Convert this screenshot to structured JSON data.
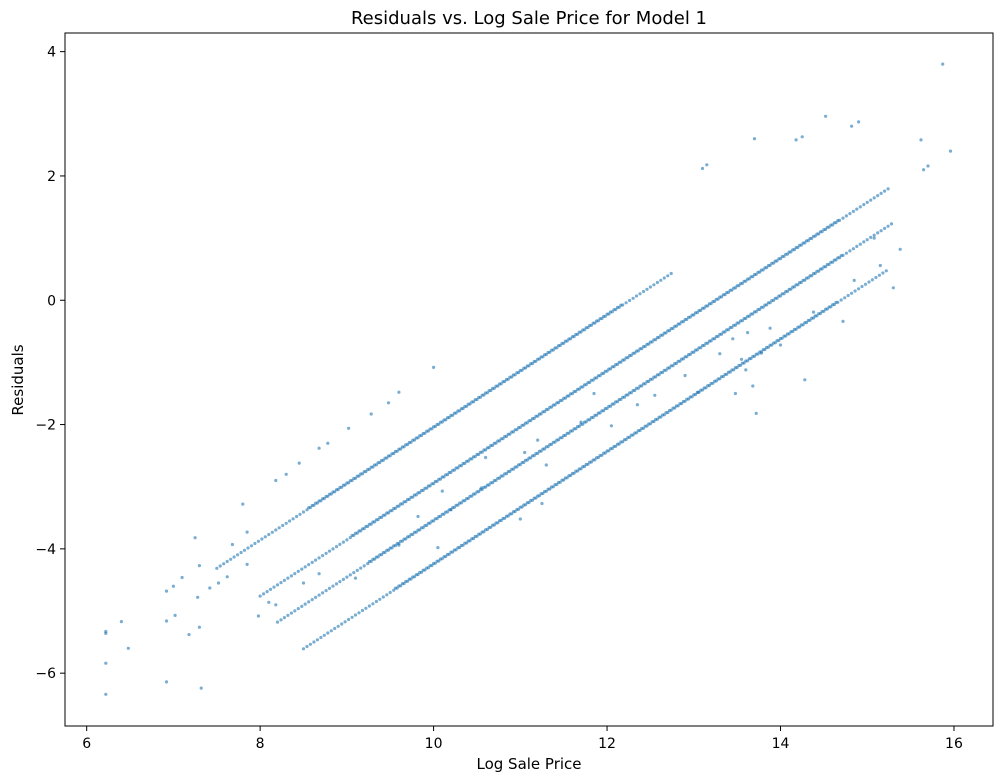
{
  "chart_data": {
    "type": "scatter",
    "title": "Residuals vs. Log Sale Price for Model 1",
    "xlabel": "Log Sale Price",
    "ylabel": "Residuals",
    "xlim": [
      5.75,
      16.45
    ],
    "ylim": [
      -6.85,
      4.3
    ],
    "xticks": [
      6,
      8,
      10,
      12,
      14,
      16
    ],
    "yticks": [
      -6,
      -4,
      -2,
      0,
      2,
      4
    ],
    "xtick_labels": [
      "6",
      "8",
      "10",
      "12",
      "14",
      "16"
    ],
    "ytick_labels": [
      "−6",
      "−4",
      "−2",
      "0",
      "2",
      "4"
    ],
    "grid": false,
    "marker_color": "#1f77b4",
    "marker_alpha": 0.6,
    "bands": [
      {
        "x_start": 7.5,
        "x_end": 12.75,
        "intercept": -11.1
      },
      {
        "x_start": 8.0,
        "x_end": 15.25,
        "intercept": -12.0
      },
      {
        "x_start": 8.2,
        "x_end": 15.3,
        "intercept": -12.6
      },
      {
        "x_start": 8.5,
        "x_end": 15.25,
        "intercept": -13.3
      }
    ],
    "band_slope": 0.905,
    "points": [
      [
        6.22,
        -5.33
      ],
      [
        6.22,
        -5.36
      ],
      [
        6.22,
        -5.84
      ],
      [
        6.22,
        -6.34
      ],
      [
        6.4,
        -5.17
      ],
      [
        6.48,
        -5.6
      ],
      [
        6.92,
        -4.68
      ],
      [
        6.92,
        -5.16
      ],
      [
        6.92,
        -6.14
      ],
      [
        7.0,
        -4.6
      ],
      [
        7.02,
        -5.07
      ],
      [
        7.1,
        -4.46
      ],
      [
        7.18,
        -5.38
      ],
      [
        7.25,
        -3.82
      ],
      [
        7.28,
        -4.78
      ],
      [
        7.3,
        -4.27
      ],
      [
        7.3,
        -5.26
      ],
      [
        7.32,
        -6.24
      ],
      [
        7.42,
        -4.63
      ],
      [
        7.52,
        -4.55
      ],
      [
        7.62,
        -4.45
      ],
      [
        7.68,
        -3.93
      ],
      [
        7.8,
        -3.28
      ],
      [
        7.85,
        -3.73
      ],
      [
        7.85,
        -4.25
      ],
      [
        7.98,
        -5.08
      ],
      [
        8.1,
        -4.86
      ],
      [
        8.18,
        -2.9
      ],
      [
        8.18,
        -4.9
      ],
      [
        8.3,
        -2.8
      ],
      [
        8.45,
        -2.62
      ],
      [
        8.5,
        -4.55
      ],
      [
        8.68,
        -2.38
      ],
      [
        8.68,
        -4.4
      ],
      [
        8.78,
        -2.3
      ],
      [
        9.02,
        -2.06
      ],
      [
        9.1,
        -4.47
      ],
      [
        9.28,
        -1.83
      ],
      [
        9.48,
        -1.65
      ],
      [
        9.6,
        -1.48
      ],
      [
        9.6,
        -3.94
      ],
      [
        9.82,
        -3.48
      ],
      [
        10.0,
        -1.08
      ],
      [
        10.05,
        -3.98
      ],
      [
        10.1,
        -3.07
      ],
      [
        10.2,
        -3.37
      ],
      [
        10.55,
        -3.02
      ],
      [
        10.6,
        -2.53
      ],
      [
        11.0,
        -3.52
      ],
      [
        11.05,
        -2.45
      ],
      [
        11.2,
        -2.25
      ],
      [
        11.25,
        -3.27
      ],
      [
        11.3,
        -2.65
      ],
      [
        11.7,
        -1.96
      ],
      [
        11.85,
        -1.5
      ],
      [
        12.05,
        -2.02
      ],
      [
        12.35,
        -1.68
      ],
      [
        12.55,
        -1.53
      ],
      [
        12.9,
        -1.21
      ],
      [
        13.05,
        -1.48
      ],
      [
        13.1,
        2.12
      ],
      [
        13.15,
        2.18
      ],
      [
        13.3,
        -0.86
      ],
      [
        13.45,
        -0.62
      ],
      [
        13.48,
        -1.5
      ],
      [
        13.55,
        -0.95
      ],
      [
        13.6,
        -1.12
      ],
      [
        13.62,
        -0.52
      ],
      [
        13.68,
        -1.38
      ],
      [
        13.7,
        2.6
      ],
      [
        13.72,
        -1.82
      ],
      [
        13.78,
        -0.85
      ],
      [
        13.88,
        -0.45
      ],
      [
        14.0,
        -0.72
      ],
      [
        14.18,
        2.58
      ],
      [
        14.25,
        2.63
      ],
      [
        14.28,
        -1.28
      ],
      [
        14.38,
        -0.19
      ],
      [
        14.52,
        2.96
      ],
      [
        14.72,
        -0.34
      ],
      [
        14.82,
        2.8
      ],
      [
        14.85,
        0.32
      ],
      [
        14.9,
        2.87
      ],
      [
        15.08,
        1.0
      ],
      [
        15.15,
        0.56
      ],
      [
        15.3,
        0.2
      ],
      [
        15.38,
        0.82
      ],
      [
        15.62,
        2.58
      ],
      [
        15.65,
        2.1
      ],
      [
        15.7,
        2.16
      ],
      [
        15.87,
        3.8
      ],
      [
        15.96,
        2.4
      ]
    ]
  }
}
